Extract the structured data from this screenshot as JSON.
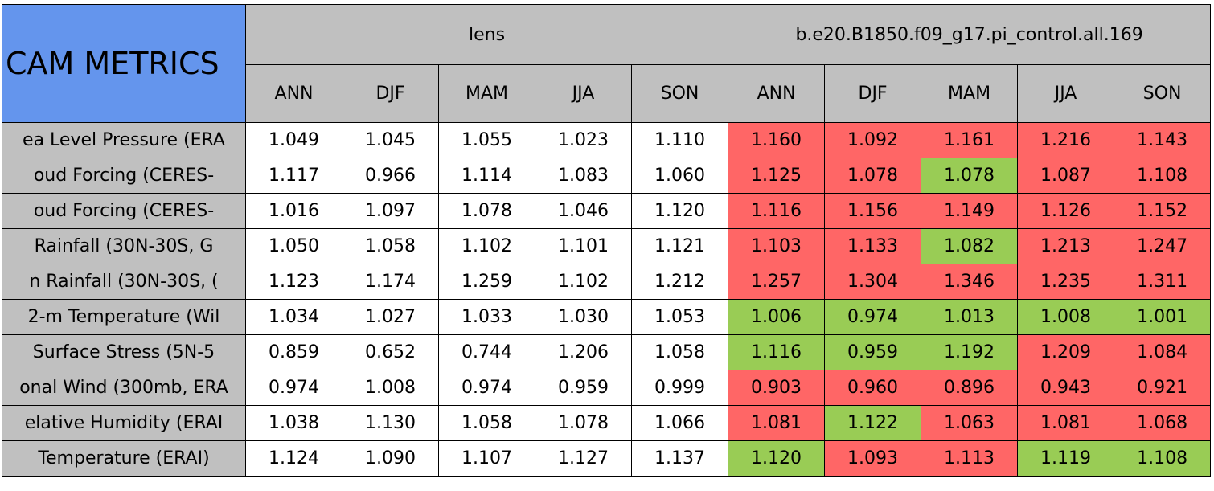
{
  "table": {
    "title": "CAM METRICS",
    "groups": [
      "lens",
      "b.e20.B1850.f09_g17.pi_control.all.169"
    ],
    "seasons": [
      "ANN",
      "DJF",
      "MAM",
      "JJA",
      "SON"
    ],
    "rows": [
      {
        "label": "ea Level Pressure (ERA",
        "values": [
          "1.049",
          "1.045",
          "1.055",
          "1.023",
          "1.110",
          "1.160",
          "1.092",
          "1.161",
          "1.216",
          "1.143"
        ],
        "colors": [
          "#ffffff",
          "#ffffff",
          "#ffffff",
          "#ffffff",
          "#ffffff",
          "#ff6666",
          "#ff6666",
          "#ff6666",
          "#ff6666",
          "#ff6666"
        ]
      },
      {
        "label": "oud Forcing (CERES-",
        "values": [
          "1.117",
          "0.966",
          "1.114",
          "1.083",
          "1.060",
          "1.125",
          "1.078",
          "1.078",
          "1.087",
          "1.108"
        ],
        "colors": [
          "#ffffff",
          "#ffffff",
          "#ffffff",
          "#ffffff",
          "#ffffff",
          "#ff6666",
          "#ff6666",
          "#99cc55",
          "#ff6666",
          "#ff6666"
        ]
      },
      {
        "label": "oud Forcing (CERES-",
        "values": [
          "1.016",
          "1.097",
          "1.078",
          "1.046",
          "1.120",
          "1.116",
          "1.156",
          "1.149",
          "1.126",
          "1.152"
        ],
        "colors": [
          "#ffffff",
          "#ffffff",
          "#ffffff",
          "#ffffff",
          "#ffffff",
          "#ff6666",
          "#ff6666",
          "#ff6666",
          "#ff6666",
          "#ff6666"
        ]
      },
      {
        "label": "Rainfall (30N-30S, G",
        "values": [
          "1.050",
          "1.058",
          "1.102",
          "1.101",
          "1.121",
          "1.103",
          "1.133",
          "1.082",
          "1.213",
          "1.247"
        ],
        "colors": [
          "#ffffff",
          "#ffffff",
          "#ffffff",
          "#ffffff",
          "#ffffff",
          "#ff6666",
          "#ff6666",
          "#99cc55",
          "#ff6666",
          "#ff6666"
        ]
      },
      {
        "label": "n Rainfall (30N-30S, (",
        "values": [
          "1.123",
          "1.174",
          "1.259",
          "1.102",
          "1.212",
          "1.257",
          "1.304",
          "1.346",
          "1.235",
          "1.311"
        ],
        "colors": [
          "#ffffff",
          "#ffffff",
          "#ffffff",
          "#ffffff",
          "#ffffff",
          "#ff6666",
          "#ff6666",
          "#ff6666",
          "#ff6666",
          "#ff6666"
        ]
      },
      {
        "label": "2-m Temperature (Wil",
        "values": [
          "1.034",
          "1.027",
          "1.033",
          "1.030",
          "1.053",
          "1.006",
          "0.974",
          "1.013",
          "1.008",
          "1.001"
        ],
        "colors": [
          "#ffffff",
          "#ffffff",
          "#ffffff",
          "#ffffff",
          "#ffffff",
          "#99cc55",
          "#99cc55",
          "#99cc55",
          "#99cc55",
          "#99cc55"
        ]
      },
      {
        "label": "Surface Stress (5N-5",
        "values": [
          "0.859",
          "0.652",
          "0.744",
          "1.206",
          "1.058",
          "1.116",
          "0.959",
          "1.192",
          "1.209",
          "1.084"
        ],
        "colors": [
          "#ffffff",
          "#ffffff",
          "#ffffff",
          "#ffffff",
          "#ffffff",
          "#99cc55",
          "#99cc55",
          "#99cc55",
          "#ff6666",
          "#ff6666"
        ]
      },
      {
        "label": "onal Wind (300mb, ERA",
        "values": [
          "0.974",
          "1.008",
          "0.974",
          "0.959",
          "0.999",
          "0.903",
          "0.960",
          "0.896",
          "0.943",
          "0.921"
        ],
        "colors": [
          "#ffffff",
          "#ffffff",
          "#ffffff",
          "#ffffff",
          "#ffffff",
          "#ff6666",
          "#ff6666",
          "#ff6666",
          "#ff6666",
          "#ff6666"
        ]
      },
      {
        "label": "elative Humidity (ERAI",
        "values": [
          "1.038",
          "1.130",
          "1.058",
          "1.078",
          "1.066",
          "1.081",
          "1.122",
          "1.063",
          "1.081",
          "1.068"
        ],
        "colors": [
          "#ffffff",
          "#ffffff",
          "#ffffff",
          "#ffffff",
          "#ffffff",
          "#ff6666",
          "#99cc55",
          "#ff6666",
          "#ff6666",
          "#ff6666"
        ]
      },
      {
        "label": "Temperature (ERAI)",
        "values": [
          "1.124",
          "1.090",
          "1.107",
          "1.127",
          "1.137",
          "1.120",
          "1.093",
          "1.113",
          "1.119",
          "1.108"
        ],
        "colors": [
          "#ffffff",
          "#ffffff",
          "#ffffff",
          "#ffffff",
          "#ffffff",
          "#99cc55",
          "#ff6666",
          "#ff6666",
          "#99cc55",
          "#99cc55"
        ]
      }
    ]
  }
}
